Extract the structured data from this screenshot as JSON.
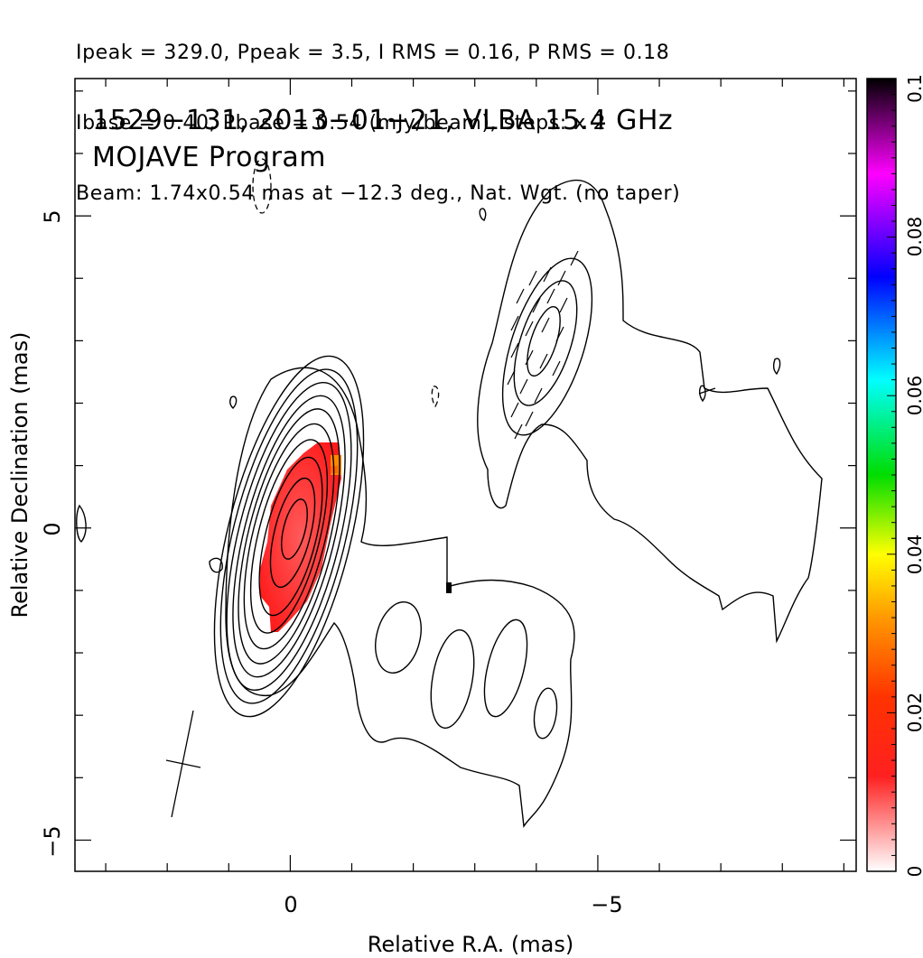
{
  "header": {
    "line1": "Ipeak = 329.0, Ppeak = 3.5, I RMS = 0.16, P RMS = 0.18",
    "line2": "Ibase = 0.40, Pbase = 0.54 (mJy/beam), steps: x 2",
    "line3": "Beam: 1.74x0.54 mas at −12.3 deg., Nat. Wgt. (no taper)"
  },
  "chart_data": {
    "type": "heatmap",
    "title": "1529−131, 2013−01−21, VLBA 15.4 GHz",
    "subtitle": "MOJAVE Program",
    "xlabel": "Relative R.A. (mas)",
    "ylabel": "Relative Declination (mas)",
    "xlim": [
      3.5,
      -9.2
    ],
    "ylim": [
      -5.5,
      7.2
    ],
    "x_ticks": [
      0,
      -5
    ],
    "x_tick_labels": [
      "0",
      "−5"
    ],
    "y_ticks": [
      -5,
      0,
      5
    ],
    "y_tick_labels": [
      "−5",
      "0",
      "5"
    ],
    "colorbar": {
      "label_ticks": [
        0,
        0.02,
        0.04,
        0.06,
        0.08,
        0.1
      ],
      "label_text": [
        "0",
        "0.02",
        "0.04",
        "0.06",
        "0.08",
        "0.1"
      ],
      "range": [
        0,
        0.1
      ],
      "colors": [
        "#ffffff",
        "#ff0000",
        "#ff8800",
        "#ffff00",
        "#00ff00",
        "#00ffff",
        "#0000ff",
        "#ff00ff",
        "#000000"
      ]
    },
    "contour_base_mJy_per_beam": 0.4,
    "contour_step_factor": 2,
    "beam": {
      "major_mas": 1.74,
      "minor_mas": 0.54,
      "pa_deg": -12.3
    },
    "core": {
      "x": 0.0,
      "y": 0.0
    },
    "jet_knot": {
      "x": -4.0,
      "y": 3.0
    }
  }
}
